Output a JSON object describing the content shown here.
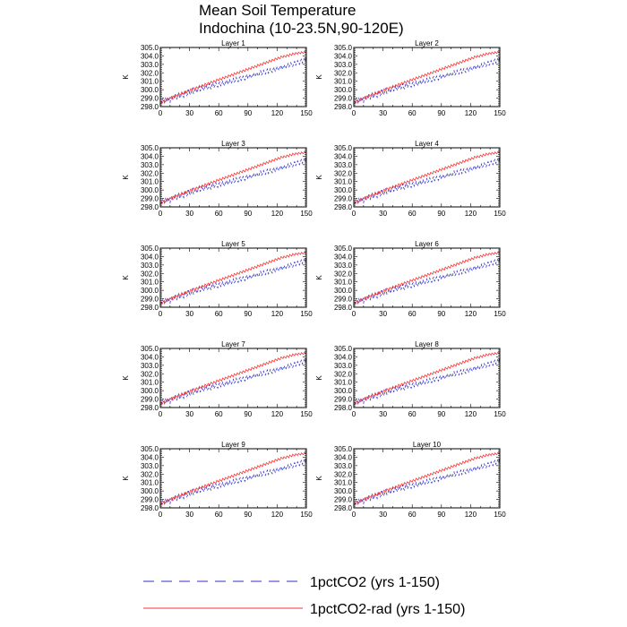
{
  "figure": {
    "title_line1": "Mean Soil Temperature",
    "title_line2": "Indochina (10-23.5N,90-120E)"
  },
  "legend": [
    {
      "label": "1pctCO2 (yrs 1-150)",
      "color": "#3333cc",
      "style": "dashed"
    },
    {
      "label": "1pctCO2-rad (yrs 1-150)",
      "color": "#ff3333",
      "style": "solid"
    }
  ],
  "chart_data": {
    "type": "line",
    "panel_count": 10,
    "panels": [
      "Layer 1",
      "Layer 2",
      "Layer 3",
      "Layer 4",
      "Layer 5",
      "Layer 6",
      "Layer 7",
      "Layer 8",
      "Layer 9",
      "Layer 10"
    ],
    "ylabel": "K",
    "xlim": [
      0,
      150
    ],
    "ylim": [
      298.0,
      305.0
    ],
    "xticks": [
      0,
      30,
      60,
      90,
      120,
      150
    ],
    "yticks": [
      "298.0",
      "299.0",
      "300.0",
      "301.0",
      "302.0",
      "303.0",
      "304.0",
      "305.0"
    ],
    "x_start": 1,
    "x_step": 1,
    "series": [
      {
        "name": "1pctCO2 (yrs 1-150)",
        "color": "#3333cc",
        "style": "dashed",
        "values": [
          298.35,
          298.9,
          298.7,
          298.45,
          299.0,
          298.8,
          298.6,
          299.1,
          298.75,
          298.5,
          299.05,
          299.3,
          298.85,
          298.95,
          299.5,
          299.1,
          298.9,
          299.4,
          299.6,
          299.0,
          299.2,
          299.7,
          299.35,
          299.1,
          299.55,
          299.9,
          299.3,
          299.45,
          300.0,
          299.6,
          299.4,
          299.85,
          300.2,
          299.55,
          299.75,
          300.15,
          299.9,
          299.65,
          300.25,
          300.4,
          299.85,
          300.0,
          300.45,
          300.1,
          299.95,
          300.35,
          300.6,
          300.05,
          300.2,
          300.7,
          300.3,
          300.1,
          300.55,
          300.8,
          300.25,
          300.45,
          300.85,
          300.5,
          300.3,
          300.75,
          300.9,
          300.45,
          300.6,
          301.0,
          300.7,
          300.5,
          300.9,
          301.15,
          300.65,
          300.85,
          301.2,
          300.9,
          300.75,
          301.1,
          301.35,
          300.9,
          301.05,
          301.45,
          301.1,
          300.95,
          301.35,
          301.55,
          301.1,
          301.3,
          301.6,
          301.35,
          301.15,
          301.55,
          301.8,
          301.3,
          301.5,
          301.85,
          301.55,
          301.4,
          301.75,
          302.0,
          301.55,
          301.7,
          302.05,
          301.8,
          301.6,
          302.0,
          302.25,
          301.75,
          301.95,
          302.3,
          302.0,
          301.85,
          302.2,
          302.45,
          301.95,
          302.15,
          302.5,
          302.25,
          302.05,
          302.45,
          302.65,
          302.2,
          302.4,
          302.75,
          302.45,
          302.3,
          302.65,
          302.9,
          302.4,
          302.6,
          302.95,
          302.7,
          302.5,
          302.9,
          303.1,
          302.65,
          302.85,
          303.2,
          302.95,
          302.75,
          303.15,
          303.35,
          302.9,
          303.1,
          303.45,
          303.2,
          303.0,
          303.4,
          303.6,
          303.15,
          303.4,
          303.7,
          303.45,
          304.0
        ]
      },
      {
        "name": "1pctCO2-rad (yrs 1-150)",
        "color": "#ff3333",
        "style": "solid",
        "values": [
          298.5,
          298.4,
          298.65,
          298.8,
          298.55,
          298.7,
          299.0,
          298.85,
          298.75,
          299.1,
          299.0,
          298.9,
          299.25,
          299.15,
          299.05,
          299.4,
          299.3,
          299.2,
          299.55,
          299.45,
          299.35,
          299.7,
          299.6,
          299.45,
          299.85,
          299.7,
          299.6,
          299.95,
          299.85,
          299.75,
          300.1,
          300.0,
          299.9,
          300.25,
          300.15,
          300.05,
          300.35,
          300.25,
          300.15,
          300.5,
          300.4,
          300.3,
          300.6,
          300.5,
          300.4,
          300.75,
          300.65,
          300.55,
          300.85,
          300.75,
          300.65,
          301.0,
          300.9,
          300.8,
          301.1,
          301.0,
          300.9,
          301.25,
          301.15,
          301.05,
          301.35,
          301.25,
          301.15,
          301.5,
          301.4,
          301.3,
          301.6,
          301.5,
          301.4,
          301.75,
          301.65,
          301.55,
          301.85,
          301.75,
          301.65,
          302.0,
          301.9,
          301.8,
          302.1,
          302.0,
          301.9,
          302.25,
          302.15,
          302.05,
          302.35,
          302.25,
          302.15,
          302.5,
          302.4,
          302.3,
          302.6,
          302.5,
          302.4,
          302.75,
          302.65,
          302.55,
          302.85,
          302.75,
          302.65,
          303.0,
          302.9,
          302.8,
          303.1,
          303.0,
          302.9,
          303.25,
          303.15,
          303.05,
          303.35,
          303.25,
          303.15,
          303.5,
          303.4,
          303.3,
          303.6,
          303.5,
          303.4,
          303.75,
          303.65,
          303.55,
          303.85,
          303.75,
          303.65,
          304.0,
          303.9,
          303.8,
          304.05,
          303.95,
          303.85,
          304.15,
          304.05,
          303.95,
          304.25,
          304.15,
          304.05,
          304.35,
          304.25,
          304.15,
          304.4,
          304.3,
          304.2,
          304.45,
          304.35,
          304.25,
          304.5,
          304.4,
          304.3,
          304.55,
          304.45,
          304.5
        ]
      }
    ]
  }
}
